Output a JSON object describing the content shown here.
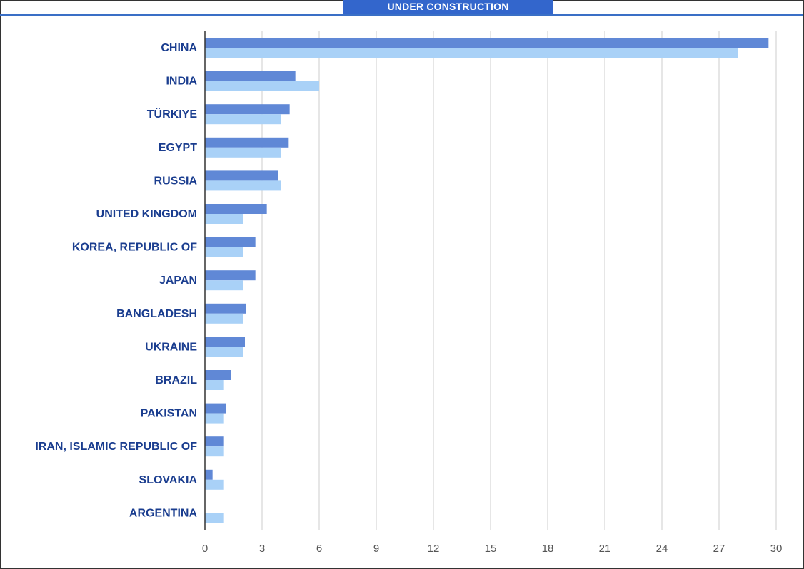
{
  "header": {
    "title": "UNDER CONSTRUCTION"
  },
  "colors": {
    "accent": "#3366cc",
    "series_1": "#6088d6",
    "series_2": "#a9d1f7",
    "label": "#1a3d8f",
    "tick": "#555555",
    "grid": "#cccccc"
  },
  "chart_data": {
    "type": "bar",
    "orientation": "horizontal",
    "title": "UNDER CONSTRUCTION",
    "xlabel": "",
    "ylabel": "",
    "xlim": [
      0,
      30
    ],
    "xticks": [
      0,
      3,
      6,
      9,
      12,
      15,
      18,
      21,
      24,
      27,
      30
    ],
    "grid": true,
    "legend": "none",
    "categories": [
      "CHINA",
      "INDIA",
      "TÜRKIYE",
      "EGYPT",
      "RUSSIA",
      "UNITED KINGDOM",
      "KOREA, REPUBLIC OF",
      "JAPAN",
      "BANGLADESH",
      "UKRAINE",
      "BRAZIL",
      "PAKISTAN",
      "IRAN, ISLAMIC REPUBLIC OF",
      "SLOVAKIA",
      "ARGENTINA"
    ],
    "series": [
      {
        "values": [
          29.6,
          4.75,
          4.45,
          4.4,
          3.85,
          3.25,
          2.65,
          2.65,
          2.15,
          2.1,
          1.35,
          1.1,
          1.0,
          0.4,
          0
        ]
      },
      {
        "values": [
          28,
          6,
          4,
          4,
          4,
          2,
          2,
          2,
          2,
          2,
          1,
          1,
          1,
          1,
          1
        ]
      }
    ]
  }
}
